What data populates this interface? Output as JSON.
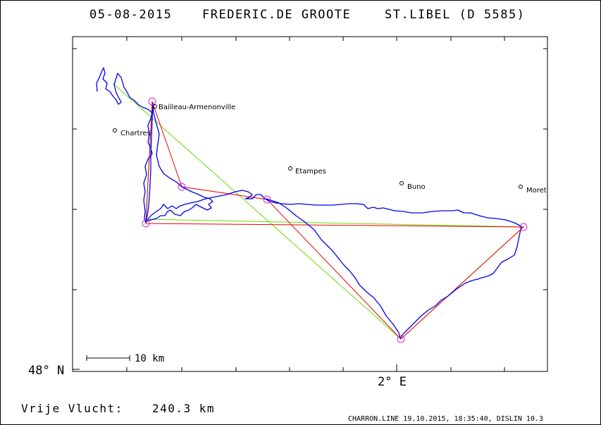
{
  "header": {
    "date": "05-08-2015",
    "pilot": "FREDERIC.DE GROOTE",
    "club": "ST.LIBEL (D 5585)"
  },
  "axes": {
    "lat_label": "48° N",
    "lon_label": "2° E"
  },
  "scale": {
    "label": "10 km"
  },
  "places": [
    {
      "name": "Bailleau-Armenonville"
    },
    {
      "name": "Chartres"
    },
    {
      "name": "Etampes"
    },
    {
      "name": "Buno"
    },
    {
      "name": "Moret"
    }
  ],
  "footer": {
    "distance_label": "Vrije Vlucht:",
    "distance_value": "240.3 km",
    "software": "CHARRON.LINE 19.10.2015, 18:35:40, DISLIN 10.3"
  },
  "colors": {
    "track": "#0000ee",
    "task_red": "#ee0000",
    "task_green": "#66dd00",
    "turnpoint": "#dd22dd",
    "text": "#000000"
  }
}
